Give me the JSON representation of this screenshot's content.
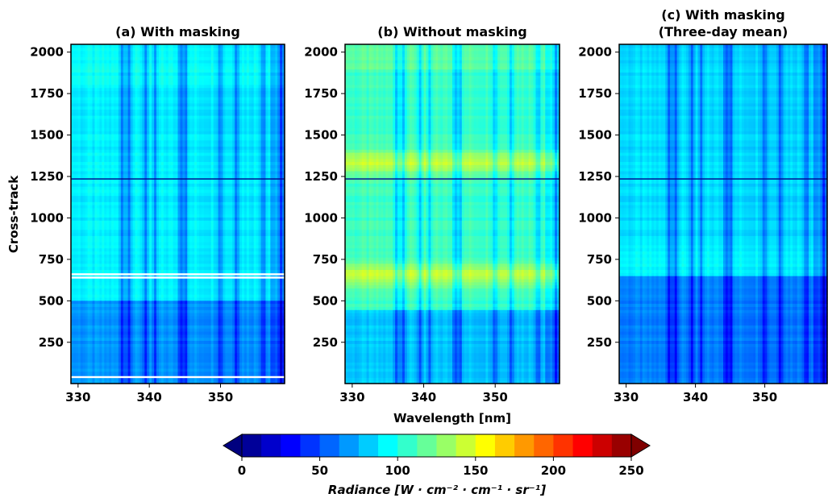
{
  "chart_data": {
    "type": "heatmap",
    "panels": [
      {
        "title_line1": "(a) With masking",
        "title_line2": "",
        "variant": "masked"
      },
      {
        "title_line1": "(b) Without masking",
        "title_line2": "",
        "variant": "unmasked"
      },
      {
        "title_line1": "(c) With masking",
        "title_line2": "(Three-day mean)",
        "variant": "mean"
      }
    ],
    "xlabel": "Wavelength [nm]",
    "ylabel": "Cross-track",
    "xlim": [
      329,
      359
    ],
    "ylim": [
      1,
      2047
    ],
    "x_ticks": [
      330,
      340,
      350
    ],
    "y_ticks": [
      250,
      500,
      750,
      1000,
      1250,
      1500,
      1750,
      2000
    ],
    "colorbar": {
      "label_main": "Radiance [",
      "label_units": "W · cm⁻² · cm⁻¹ · sr⁻¹",
      "label_end": "]",
      "vmin": 0,
      "vmax": 250,
      "step": 12.5,
      "extend": "both",
      "ticks": [
        0,
        50,
        100,
        150,
        200,
        250
      ],
      "colormap": "jet"
    },
    "features": {
      "dark_absorption_columns_nm": [
        336.2,
        337.1,
        339.5,
        340.8,
        344.4,
        345.1,
        350.0,
        352.2,
        356.0,
        358.5
      ],
      "bright_rows_unmasked": [
        660,
        1340
      ],
      "masked_rows_white_a": [
        640,
        660,
        40
      ],
      "horizontal_line_row": 1235
    }
  }
}
